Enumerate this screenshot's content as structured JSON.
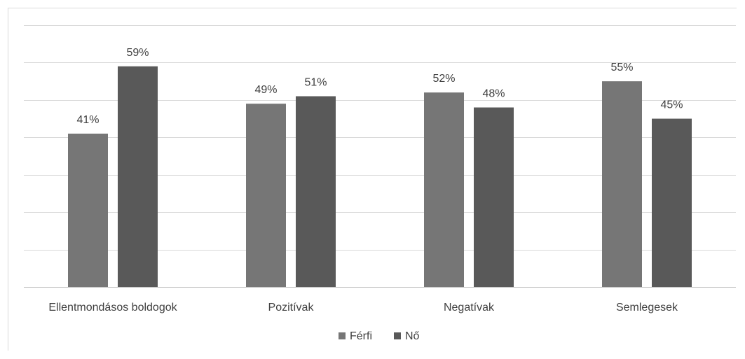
{
  "chart_data": {
    "type": "bar",
    "title": "",
    "xlabel": "",
    "ylabel": "",
    "categories": [
      "Ellentmondásos boldogok",
      "Pozitívak",
      "Negatívak",
      "Semlegesek"
    ],
    "series": [
      {
        "name": "Férfi",
        "values": [
          41,
          49,
          52,
          55
        ],
        "color": "#767676"
      },
      {
        "name": "Nő",
        "values": [
          59,
          51,
          48,
          45
        ],
        "color": "#595959"
      }
    ],
    "value_suffix": "%",
    "ylim": [
      0,
      70
    ],
    "gridlines": 7,
    "grid": true,
    "y_axis_labels_visible": false,
    "legend_position": "bottom-center"
  }
}
